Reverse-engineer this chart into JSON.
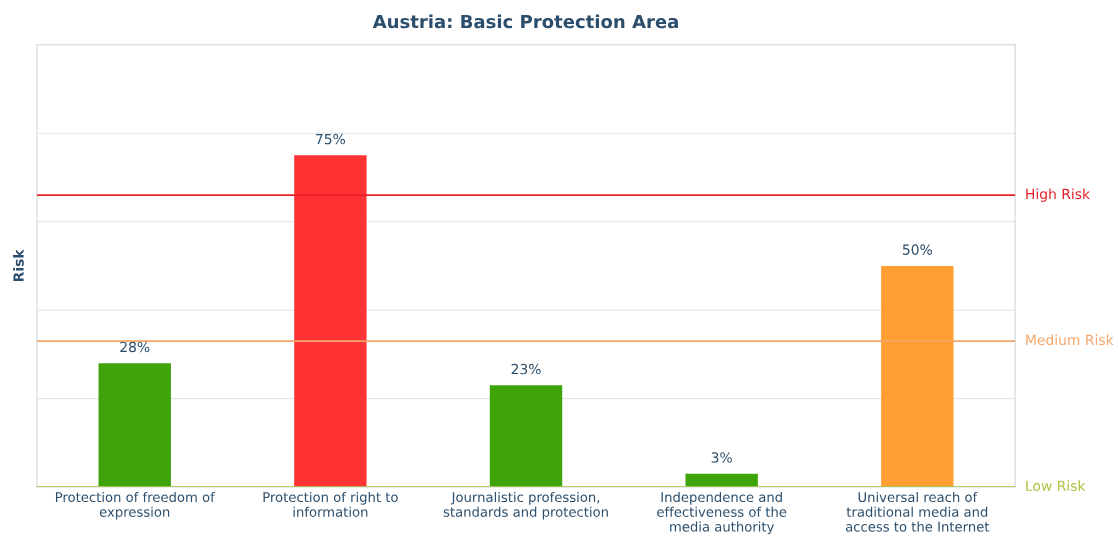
{
  "chart_data": {
    "type": "bar",
    "title": "Austria: Basic Protection Area",
    "ylabel": "Risk",
    "categories": [
      "Protection of freedom of\nexpression",
      "Protection of right to\ninformation",
      "Journalistic profession,\nstandards and protection",
      "Independence and\neffectiveness of the\nmedia authority",
      "Universal reach of\ntraditional media and\naccess to the Internet"
    ],
    "values": [
      28,
      75,
      23,
      3,
      50
    ],
    "colors": [
      "#3fa30a",
      "#ff3333",
      "#3fa30a",
      "#3fa30a",
      "#ff9f33"
    ],
    "value_labels": [
      "28%",
      "75%",
      "23%",
      "3%",
      "50%"
    ],
    "ylim": [
      0,
      100
    ],
    "yticks": [
      {
        "value": 0,
        "label": null
      },
      {
        "value": 20,
        "label": null
      },
      {
        "value": 40,
        "label": null
      },
      {
        "value": 60,
        "label": null
      },
      {
        "value": 80,
        "label": null
      },
      {
        "value": 100,
        "label": null
      }
    ],
    "grid": "y",
    "ref_lines": [
      {
        "axis": "y",
        "value": 66,
        "label": "High Risk",
        "color": "#e8202a"
      },
      {
        "axis": "y",
        "value": 33,
        "label": "Medium Risk",
        "color": "#f5a56a"
      },
      {
        "axis": "y",
        "value": 0,
        "label": "Low Risk",
        "color": "#a8c43a"
      }
    ]
  }
}
